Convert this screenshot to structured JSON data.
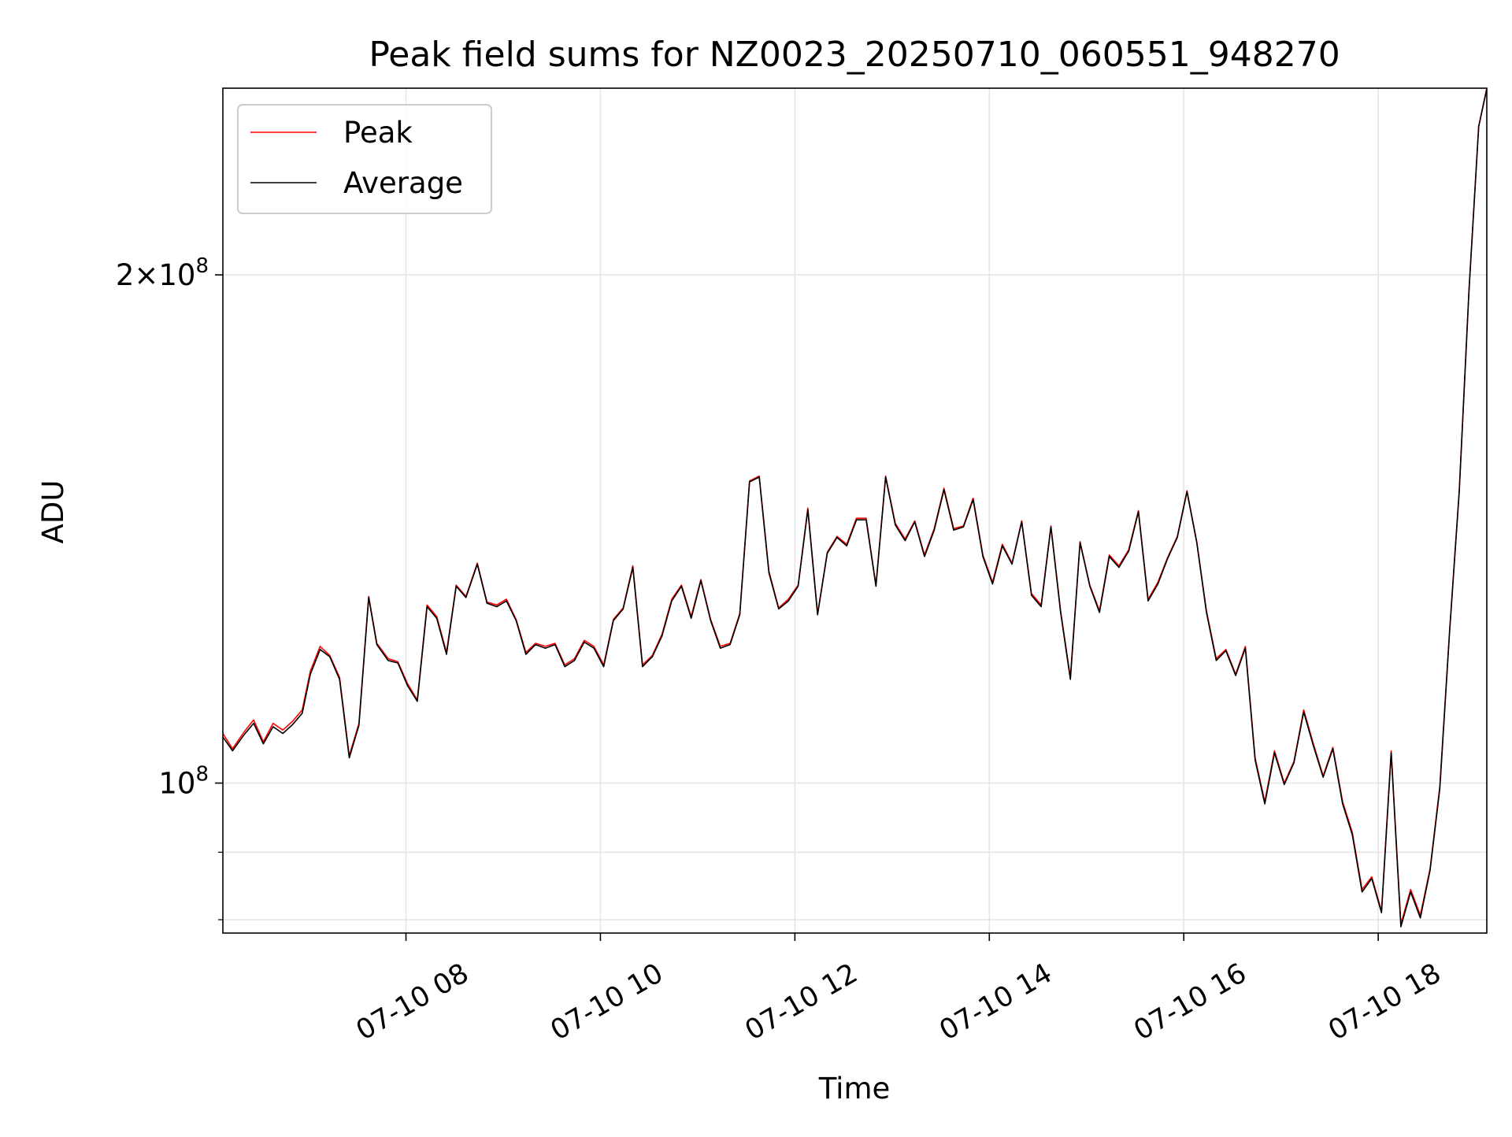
{
  "chart_data": {
    "type": "line",
    "title": "Peak field sums for NZ0023_20250710_060551_948270",
    "xlabel": "Time",
    "ylabel": "ADU",
    "yscale": "log",
    "ylim": [
      81500000,
      258000000
    ],
    "xlim": [
      "07-10 06:07",
      "07-10 19:07"
    ],
    "x_ticks": [
      {
        "at": "07-10 08:00",
        "label": "07-10 08"
      },
      {
        "at": "07-10 10:00",
        "label": "07-10 10"
      },
      {
        "at": "07-10 12:00",
        "label": "07-10 12"
      },
      {
        "at": "07-10 14:00",
        "label": "07-10 14"
      },
      {
        "at": "07-10 16:00",
        "label": "07-10 16"
      },
      {
        "at": "07-10 18:00",
        "label": "07-10 18"
      }
    ],
    "y_ticks": [
      {
        "value": 100000000,
        "base": "10",
        "exp": "8"
      },
      {
        "value": 200000000,
        "mant": "2×10",
        "exp": "8"
      }
    ],
    "y_minor_ticks": [
      83000000,
      91000000
    ],
    "grid": true,
    "legend_position": "top-left",
    "series": [
      {
        "name": "Peak",
        "color": "#ff0000",
        "x": [
          "07-10 06:07",
          "07-10 06:13",
          "07-10 06:20",
          "07-10 06:26",
          "07-10 06:32",
          "07-10 06:38",
          "07-10 06:44",
          "07-10 06:50",
          "07-10 06:56",
          "07-10 07:01",
          "07-10 07:07",
          "07-10 07:13",
          "07-10 07:19",
          "07-10 07:25",
          "07-10 07:31",
          "07-10 07:37",
          "07-10 07:42",
          "07-10 07:49",
          "07-10 07:55",
          "07-10 08:01",
          "07-10 08:07",
          "07-10 08:13",
          "07-10 08:19",
          "07-10 08:25",
          "07-10 08:31",
          "07-10 08:37",
          "07-10 08:44",
          "07-10 08:50",
          "07-10 08:56",
          "07-10 09:02",
          "07-10 09:08",
          "07-10 09:14",
          "07-10 09:20",
          "07-10 09:26",
          "07-10 09:32",
          "07-10 09:38",
          "07-10 09:44",
          "07-10 09:50",
          "07-10 09:56",
          "07-10 10:02",
          "07-10 10:08",
          "07-10 10:14",
          "07-10 10:20",
          "07-10 10:26",
          "07-10 10:32",
          "07-10 10:38",
          "07-10 10:44",
          "07-10 10:50",
          "07-10 10:56",
          "07-10 11:02",
          "07-10 11:08",
          "07-10 11:14",
          "07-10 11:20",
          "07-10 11:26",
          "07-10 11:32",
          "07-10 11:38",
          "07-10 11:44",
          "07-10 11:50",
          "07-10 11:56",
          "07-10 12:02",
          "07-10 12:08",
          "07-10 12:14",
          "07-10 12:20",
          "07-10 12:26",
          "07-10 12:32",
          "07-10 12:38",
          "07-10 12:44",
          "07-10 12:50",
          "07-10 12:56",
          "07-10 13:02",
          "07-10 13:08",
          "07-10 13:14",
          "07-10 13:20",
          "07-10 13:26",
          "07-10 13:32",
          "07-10 13:38",
          "07-10 13:44",
          "07-10 13:50",
          "07-10 13:56",
          "07-10 14:02",
          "07-10 14:08",
          "07-10 14:14",
          "07-10 14:20",
          "07-10 14:26",
          "07-10 14:32",
          "07-10 14:38",
          "07-10 14:44",
          "07-10 14:50",
          "07-10 14:56",
          "07-10 15:02",
          "07-10 15:08",
          "07-10 15:14",
          "07-10 15:20",
          "07-10 15:26",
          "07-10 15:32",
          "07-10 15:38",
          "07-10 15:44",
          "07-10 15:50",
          "07-10 15:56",
          "07-10 16:02",
          "07-10 16:08",
          "07-10 16:14",
          "07-10 16:20",
          "07-10 16:26",
          "07-10 16:32",
          "07-10 16:38",
          "07-10 16:44",
          "07-10 16:50",
          "07-10 16:56",
          "07-10 17:02",
          "07-10 17:08",
          "07-10 17:14",
          "07-10 17:20",
          "07-10 17:26",
          "07-10 17:32",
          "07-10 17:38",
          "07-10 17:44",
          "07-10 17:50",
          "07-10 17:56",
          "07-10 18:02",
          "07-10 18:08",
          "07-10 18:14",
          "07-10 18:20",
          "07-10 18:26",
          "07-10 18:32",
          "07-10 18:38",
          "07-10 18:44",
          "07-10 18:50",
          "07-10 18:56",
          "07-10 19:02",
          "07-10 19:07"
        ],
        "y": [
          107000000,
          104800000,
          107200000,
          109000000,
          105800000,
          108500000,
          107500000,
          108800000,
          110500000,
          116500000,
          120500000,
          119000000,
          115500000,
          103800000,
          108500000,
          129000000,
          121000000,
          118500000,
          118000000,
          114500000,
          112000000,
          127500000,
          125500000,
          119500000,
          131000000,
          129000000,
          135000000,
          128000000,
          127500000,
          128500000,
          125000000,
          119500000,
          121000000,
          120500000,
          121000000,
          117500000,
          118500000,
          121500000,
          120500000,
          117500000,
          125000000,
          127000000,
          134500000,
          117500000,
          119000000,
          122500000,
          128500000,
          131000000,
          125500000,
          132000000,
          125000000,
          120500000,
          121000000,
          126000000,
          151000000,
          152000000,
          133500000,
          127000000,
          128500000,
          131000000,
          145500000,
          126000000,
          137000000,
          140000000,
          138500000,
          143500000,
          143500000,
          131000000,
          152000000,
          142500000,
          139500000,
          143000000,
          136500000,
          141500000,
          149500000,
          141500000,
          142000000,
          147500000,
          136500000,
          131500000,
          138500000,
          135000000,
          143000000,
          129500000,
          127500000,
          142000000,
          126500000,
          115500000,
          139000000,
          131000000,
          126500000,
          136500000,
          134500000,
          137500000,
          145000000,
          128500000,
          131500000,
          136000000,
          140000000,
          149000000,
          139000000,
          126500000,
          118500000,
          120000000,
          116000000,
          120500000,
          103500000,
          97500000,
          104500000,
          100000000,
          103000000,
          110500000,
          105500000,
          101000000,
          105000000,
          97500000,
          93500000,
          86500000,
          88000000,
          84000000,
          104500000,
          82500000,
          86500000,
          83500000,
          89000000,
          99500000,
          123000000,
          149000000,
          196000000,
          245000000,
          258000000
        ]
      },
      {
        "name": "Average",
        "color": "#000000",
        "x": [
          "07-10 06:07",
          "07-10 06:13",
          "07-10 06:20",
          "07-10 06:26",
          "07-10 06:32",
          "07-10 06:38",
          "07-10 06:44",
          "07-10 06:50",
          "07-10 06:56",
          "07-10 07:01",
          "07-10 07:07",
          "07-10 07:13",
          "07-10 07:19",
          "07-10 07:25",
          "07-10 07:31",
          "07-10 07:37",
          "07-10 07:42",
          "07-10 07:49",
          "07-10 07:55",
          "07-10 08:01",
          "07-10 08:07",
          "07-10 08:13",
          "07-10 08:19",
          "07-10 08:25",
          "07-10 08:31",
          "07-10 08:37",
          "07-10 08:44",
          "07-10 08:50",
          "07-10 08:56",
          "07-10 09:02",
          "07-10 09:08",
          "07-10 09:14",
          "07-10 09:20",
          "07-10 09:26",
          "07-10 09:32",
          "07-10 09:38",
          "07-10 09:44",
          "07-10 09:50",
          "07-10 09:56",
          "07-10 10:02",
          "07-10 10:08",
          "07-10 10:14",
          "07-10 10:20",
          "07-10 10:26",
          "07-10 10:32",
          "07-10 10:38",
          "07-10 10:44",
          "07-10 10:50",
          "07-10 10:56",
          "07-10 11:02",
          "07-10 11:08",
          "07-10 11:14",
          "07-10 11:20",
          "07-10 11:26",
          "07-10 11:32",
          "07-10 11:38",
          "07-10 11:44",
          "07-10 11:50",
          "07-10 11:56",
          "07-10 12:02",
          "07-10 12:08",
          "07-10 12:14",
          "07-10 12:20",
          "07-10 12:26",
          "07-10 12:32",
          "07-10 12:38",
          "07-10 12:44",
          "07-10 12:50",
          "07-10 12:56",
          "07-10 13:02",
          "07-10 13:08",
          "07-10 13:14",
          "07-10 13:20",
          "07-10 13:26",
          "07-10 13:32",
          "07-10 13:38",
          "07-10 13:44",
          "07-10 13:50",
          "07-10 13:56",
          "07-10 14:02",
          "07-10 14:08",
          "07-10 14:14",
          "07-10 14:20",
          "07-10 14:26",
          "07-10 14:32",
          "07-10 14:38",
          "07-10 14:44",
          "07-10 14:50",
          "07-10 14:56",
          "07-10 15:02",
          "07-10 15:08",
          "07-10 15:14",
          "07-10 15:20",
          "07-10 15:26",
          "07-10 15:32",
          "07-10 15:38",
          "07-10 15:44",
          "07-10 15:50",
          "07-10 15:56",
          "07-10 16:02",
          "07-10 16:08",
          "07-10 16:14",
          "07-10 16:20",
          "07-10 16:26",
          "07-10 16:32",
          "07-10 16:38",
          "07-10 16:44",
          "07-10 16:50",
          "07-10 16:56",
          "07-10 17:02",
          "07-10 17:08",
          "07-10 17:14",
          "07-10 17:20",
          "07-10 17:26",
          "07-10 17:32",
          "07-10 17:38",
          "07-10 17:44",
          "07-10 17:50",
          "07-10 17:56",
          "07-10 18:02",
          "07-10 18:08",
          "07-10 18:14",
          "07-10 18:20",
          "07-10 18:26",
          "07-10 18:32",
          "07-10 18:38",
          "07-10 18:44",
          "07-10 18:50",
          "07-10 18:56",
          "07-10 19:02",
          "07-10 19:07"
        ],
        "y": [
          106500000,
          104500000,
          106800000,
          108500000,
          105500000,
          108000000,
          107000000,
          108300000,
          110000000,
          116000000,
          120000000,
          118800000,
          115200000,
          103500000,
          108200000,
          128800000,
          120800000,
          118200000,
          117800000,
          114200000,
          111800000,
          127200000,
          125200000,
          119200000,
          130800000,
          128800000,
          134800000,
          127800000,
          127200000,
          128200000,
          124800000,
          119200000,
          120800000,
          120200000,
          120800000,
          117200000,
          118200000,
          121200000,
          120200000,
          117200000,
          124800000,
          126800000,
          134200000,
          117200000,
          118800000,
          122200000,
          128200000,
          130800000,
          125200000,
          131800000,
          124800000,
          120200000,
          120800000,
          125800000,
          150800000,
          151800000,
          133200000,
          126800000,
          128200000,
          130800000,
          145200000,
          125800000,
          136800000,
          139800000,
          138200000,
          143200000,
          143200000,
          130800000,
          151800000,
          142200000,
          139200000,
          142800000,
          136200000,
          141200000,
          149200000,
          141200000,
          141800000,
          147200000,
          136200000,
          131200000,
          138200000,
          134800000,
          142800000,
          129200000,
          127200000,
          141800000,
          126200000,
          115200000,
          138800000,
          130800000,
          126200000,
          136200000,
          134200000,
          137200000,
          144800000,
          128200000,
          131200000,
          135800000,
          139800000,
          148800000,
          138800000,
          126200000,
          118200000,
          119800000,
          115800000,
          120200000,
          103200000,
          97200000,
          104200000,
          99800000,
          102800000,
          110200000,
          105200000,
          100800000,
          104800000,
          97200000,
          93200000,
          86200000,
          87800000,
          83800000,
          104200000,
          82200000,
          86200000,
          83200000,
          88800000,
          99200000,
          122800000,
          148800000,
          195800000,
          244800000,
          257800000
        ]
      }
    ]
  }
}
